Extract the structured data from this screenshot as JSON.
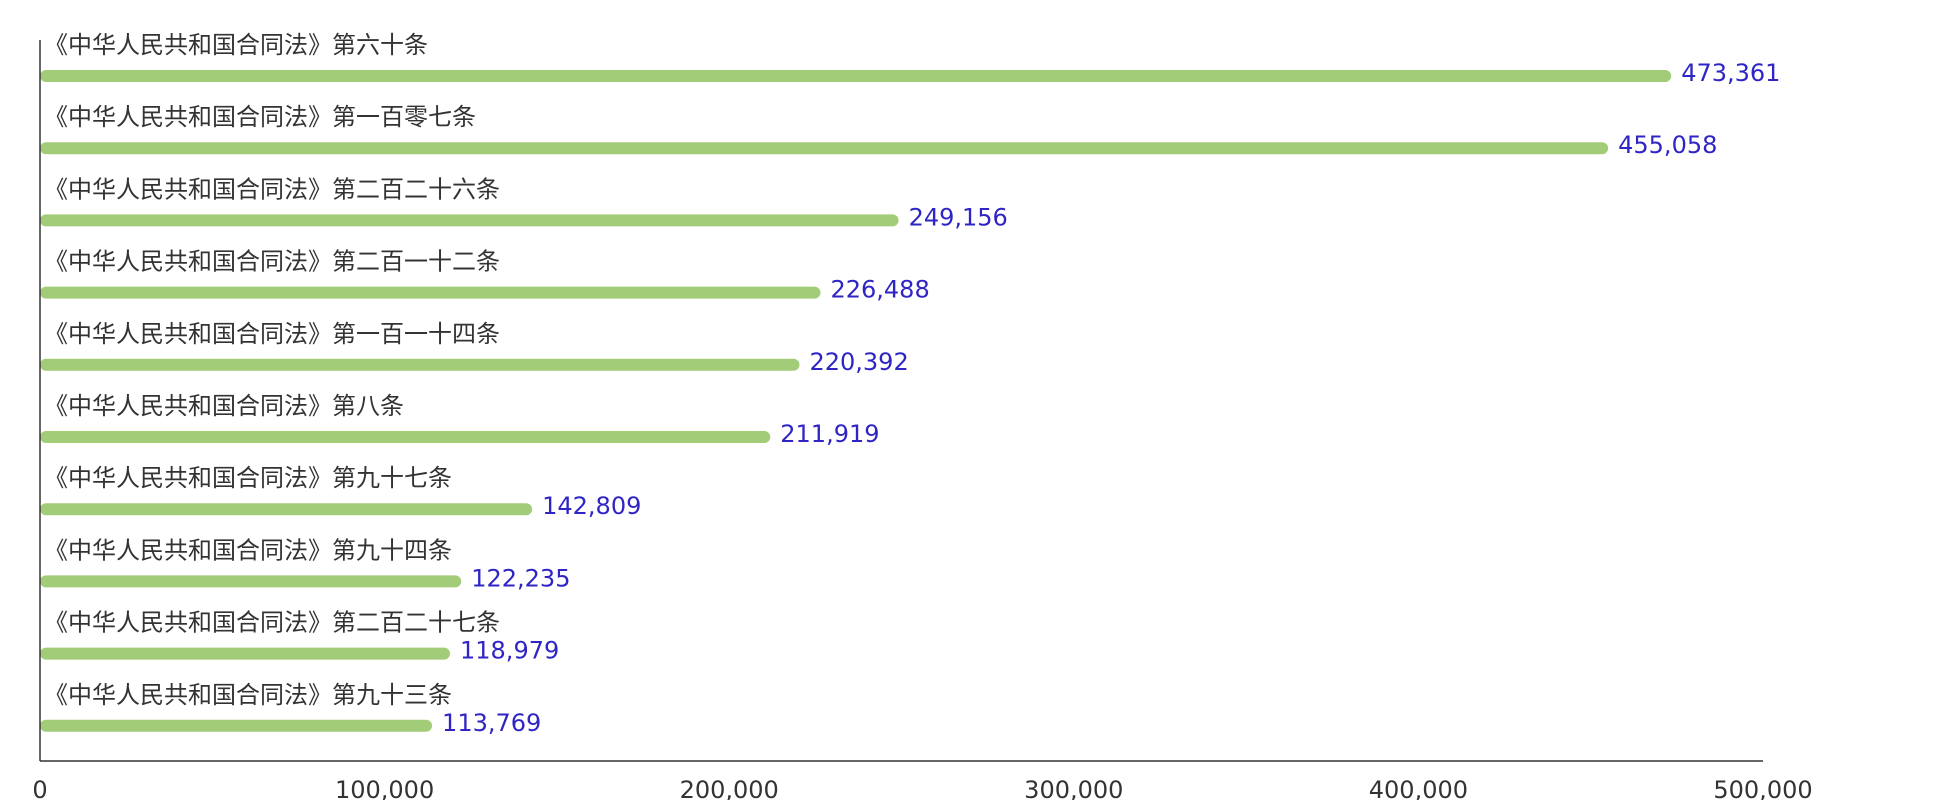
{
  "chart_data": {
    "type": "bar",
    "orientation": "horizontal",
    "categories": [
      "《中华人民共和国合同法》第六十条",
      "《中华人民共和国合同法》第一百零七条",
      "《中华人民共和国合同法》第二百二十六条",
      "《中华人民共和国合同法》第二百一十二条",
      "《中华人民共和国合同法》第一百一十四条",
      "《中华人民共和国合同法》第八条",
      "《中华人民共和国合同法》第九十七条",
      "《中华人民共和国合同法》第九十四条",
      "《中华人民共和国合同法》第二百二十七条",
      "《中华人民共和国合同法》第九十三条"
    ],
    "values": [
      473361,
      455058,
      249156,
      226488,
      220392,
      211919,
      142809,
      122235,
      118979,
      113769
    ],
    "value_labels": [
      "473,361",
      "455,058",
      "249,156",
      "226,488",
      "220,392",
      "211,919",
      "142,809",
      "122,235",
      "118,979",
      "113,769"
    ],
    "xlim": [
      0,
      500000
    ],
    "x_ticks": [
      0,
      100000,
      200000,
      300000,
      400000,
      500000
    ],
    "x_tick_labels": [
      "0",
      "100,000",
      "200,000",
      "300,000",
      "400,000",
      "500,000"
    ],
    "title": "",
    "xlabel": "",
    "ylabel": "",
    "grid": false,
    "legend": false,
    "bar_color": "#a3cc78",
    "value_label_color": "#2f25c4",
    "axis_color": "#333333"
  }
}
